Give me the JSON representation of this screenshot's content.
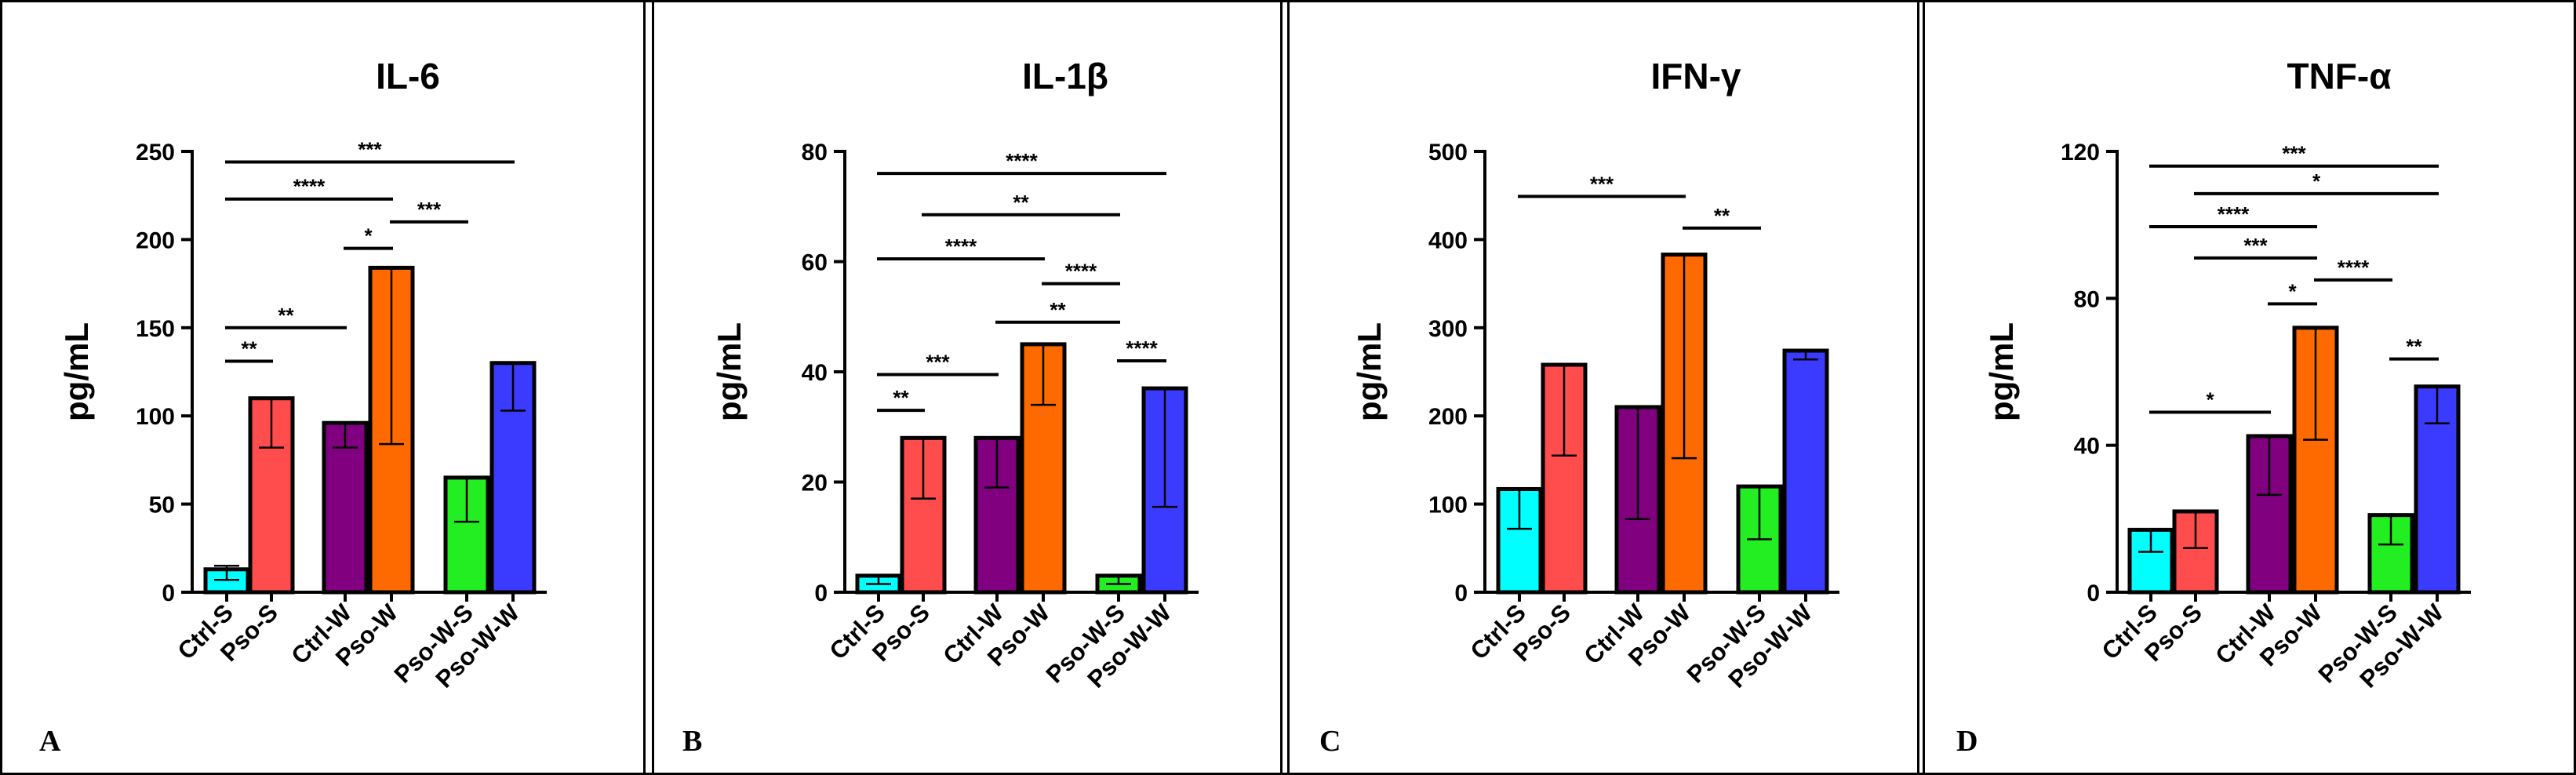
{
  "chart_data": [
    {
      "type": "bar",
      "panel_letter": "A",
      "title": "IL-6",
      "ylabel": "pg/mL",
      "ylim": [
        0,
        250
      ],
      "yticks": [
        0,
        50,
        100,
        150,
        200,
        250
      ],
      "categories": [
        "Ctrl-S",
        "Pso-S",
        "Ctrl-W",
        "Pso-W",
        "Pso-W-S",
        "Pso-W-W"
      ],
      "values": [
        13,
        110,
        96,
        184,
        65,
        130
      ],
      "error_low": [
        7,
        82,
        82,
        84,
        40,
        103
      ],
      "error_high": [
        15,
        110,
        96,
        184,
        65,
        130
      ],
      "colors": [
        "#00FFFF",
        "#FF4C4C",
        "#800080",
        "#FF6A00",
        "#22EE22",
        "#3B3BFF"
      ],
      "significance": [
        {
          "from": "Ctrl-S",
          "to": "Pso-W-W",
          "y": 244,
          "label": "***"
        },
        {
          "from": "Ctrl-S",
          "to": "Pso-W",
          "y": 223,
          "label": "****"
        },
        {
          "from": "Pso-W",
          "to": "Pso-W-S",
          "y": 210,
          "label": "***"
        },
        {
          "from": "Ctrl-W",
          "to": "Pso-W",
          "y": 195,
          "label": "*"
        },
        {
          "from": "Ctrl-S",
          "to": "Ctrl-W",
          "y": 150,
          "label": "**"
        },
        {
          "from": "Ctrl-S",
          "to": "Pso-S",
          "y": 131,
          "label": "**"
        }
      ]
    },
    {
      "type": "bar",
      "panel_letter": "B",
      "title": "IL-1β",
      "ylabel": "pg/mL",
      "ylim": [
        0,
        80
      ],
      "yticks": [
        0,
        20,
        40,
        60,
        80
      ],
      "categories": [
        "Ctrl-S",
        "Pso-S",
        "Ctrl-W",
        "Pso-W",
        "Pso-W-S",
        "Pso-W-W"
      ],
      "values": [
        3,
        28,
        28,
        45,
        3,
        37
      ],
      "error_low": [
        1.5,
        17,
        19,
        34,
        1.5,
        15.5
      ],
      "error_high": [
        3,
        28,
        28,
        45,
        3,
        37
      ],
      "colors": [
        "#00FFFF",
        "#FF4C4C",
        "#800080",
        "#FF6A00",
        "#22EE22",
        "#3B3BFF"
      ],
      "significance": [
        {
          "from": "Ctrl-S",
          "to": "Pso-W-W",
          "y": 76,
          "label": "****"
        },
        {
          "from": "Pso-S",
          "to": "Pso-W-S",
          "y": 68.5,
          "label": "**"
        },
        {
          "from": "Ctrl-S",
          "to": "Pso-W",
          "y": 60.5,
          "label": "****"
        },
        {
          "from": "Pso-W",
          "to": "Pso-W-S",
          "y": 56,
          "label": "****"
        },
        {
          "from": "Ctrl-W",
          "to": "Pso-W-S",
          "y": 49,
          "label": "**"
        },
        {
          "from": "Pso-W-S",
          "to": "Pso-W-W",
          "y": 42,
          "label": "****"
        },
        {
          "from": "Ctrl-S",
          "to": "Ctrl-W",
          "y": 39.5,
          "label": "***"
        },
        {
          "from": "Ctrl-S",
          "to": "Pso-S",
          "y": 33,
          "label": "**"
        }
      ]
    },
    {
      "type": "bar",
      "panel_letter": "C",
      "title": "IFN-γ",
      "ylabel": "pg/mL",
      "ylim": [
        0,
        500
      ],
      "yticks": [
        0,
        100,
        200,
        300,
        400,
        500
      ],
      "categories": [
        "Ctrl-S",
        "Pso-S",
        "Ctrl-W",
        "Pso-W",
        "Pso-W-S",
        "Pso-W-W"
      ],
      "values": [
        117,
        258,
        210,
        383,
        120,
        274
      ],
      "error_low": [
        72,
        155,
        83,
        152,
        60,
        264
      ],
      "error_high": [
        117,
        258,
        210,
        383,
        120,
        274
      ],
      "colors": [
        "#00FFFF",
        "#FF4C4C",
        "#800080",
        "#FF6A00",
        "#22EE22",
        "#3B3BFF"
      ],
      "significance": [
        {
          "from": "Ctrl-S",
          "to": "Pso-W",
          "y": 449,
          "label": "***"
        },
        {
          "from": "Pso-W",
          "to": "Pso-W-S",
          "y": 413,
          "label": "**"
        }
      ]
    },
    {
      "type": "bar",
      "panel_letter": "D",
      "title": "TNF-α",
      "ylabel": "pg/mL",
      "ylim": [
        0,
        120
      ],
      "yticks": [
        0,
        40,
        80,
        120
      ],
      "categories": [
        "Ctrl-S",
        "Pso-S",
        "Ctrl-W",
        "Pso-W",
        "Pso-W-S",
        "Pso-W-W"
      ],
      "values": [
        17,
        22,
        42.5,
        72,
        21,
        56
      ],
      "error_low": [
        11,
        12,
        26.5,
        41.5,
        13,
        46
      ],
      "error_high": [
        17,
        22,
        42.5,
        72,
        21,
        56
      ],
      "colors": [
        "#00FFFF",
        "#FF4C4C",
        "#800080",
        "#FF6A00",
        "#22EE22",
        "#3B3BFF"
      ],
      "significance": [
        {
          "from": "Ctrl-S",
          "to": "Pso-W-W",
          "y": 116,
          "label": "***"
        },
        {
          "from": "Pso-S",
          "to": "Pso-W-W",
          "y": 108.5,
          "label": "*"
        },
        {
          "from": "Ctrl-S",
          "to": "Pso-W",
          "y": 99.5,
          "label": "****"
        },
        {
          "from": "Pso-S",
          "to": "Pso-W",
          "y": 91,
          "label": "***"
        },
        {
          "from": "Pso-W",
          "to": "Pso-W-S",
          "y": 85,
          "label": "****"
        },
        {
          "from": "Ctrl-W",
          "to": "Pso-W",
          "y": 78.5,
          "label": "*"
        },
        {
          "from": "Pso-W-S",
          "to": "Pso-W-W",
          "y": 63.5,
          "label": "**"
        },
        {
          "from": "Ctrl-S",
          "to": "Ctrl-W",
          "y": 49,
          "label": "*"
        }
      ]
    }
  ]
}
